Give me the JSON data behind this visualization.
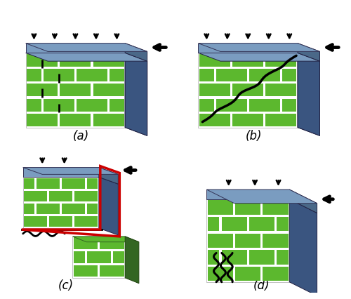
{
  "background_color": "#ffffff",
  "brick_green": "#5cb82e",
  "mortar_color": "#ffffff",
  "wall_side_color": "#3a5580",
  "wall_top_color": "#6a85aa",
  "crack_color": "#000000",
  "label_fontsize": 12,
  "labels": [
    "(a)",
    "(b)",
    "(c)",
    "(d)"
  ],
  "sliding_red": "#cc0000",
  "top_slab_color": "#7a9cc0",
  "top_slab_dark": "#4a6888"
}
